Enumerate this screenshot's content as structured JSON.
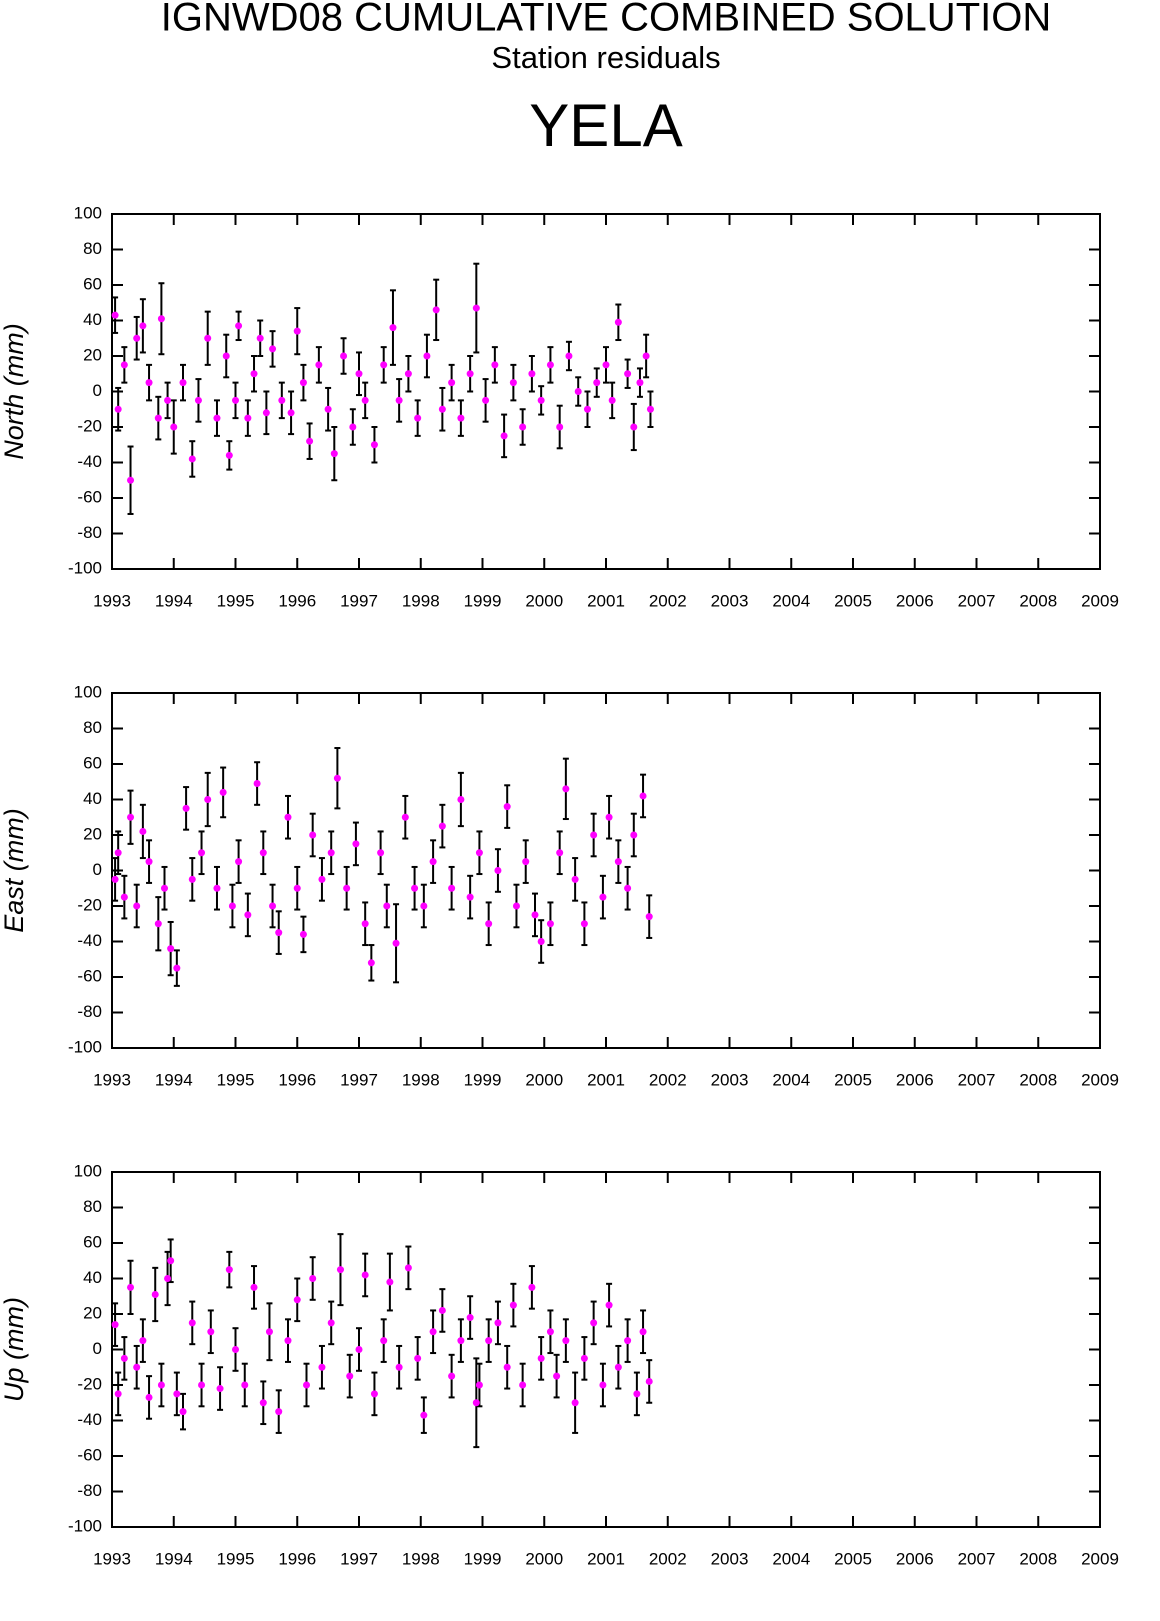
{
  "header": {
    "title": "IGNWD08 CUMULATIVE COMBINED SOLUTION",
    "subtitle": "Station residuals",
    "station": "YELA"
  },
  "chart_data": [
    {
      "type": "scatter",
      "ylabel": "North (mm)",
      "xlim": [
        1993,
        2009
      ],
      "xticks": [
        1993,
        1994,
        1995,
        1996,
        1997,
        1998,
        1999,
        2000,
        2001,
        2002,
        2003,
        2004,
        2005,
        2006,
        2007,
        2008,
        2009
      ],
      "ylim": [
        -100,
        100
      ],
      "yticks": [
        -100,
        -80,
        -60,
        -40,
        -20,
        0,
        20,
        40,
        60,
        80,
        100
      ],
      "x": [
        1993.05,
        1993.1,
        1993.2,
        1993.3,
        1993.4,
        1993.5,
        1993.6,
        1993.75,
        1993.8,
        1993.9,
        1994.0,
        1994.15,
        1994.3,
        1994.4,
        1994.55,
        1994.7,
        1994.85,
        1994.9,
        1995.0,
        1995.05,
        1995.2,
        1995.3,
        1995.4,
        1995.5,
        1995.6,
        1995.75,
        1995.9,
        1996.0,
        1996.1,
        1996.2,
        1996.35,
        1996.5,
        1996.6,
        1996.75,
        1996.9,
        1997.0,
        1997.1,
        1997.25,
        1997.4,
        1997.55,
        1997.65,
        1997.8,
        1997.95,
        1998.1,
        1998.25,
        1998.35,
        1998.5,
        1998.65,
        1998.8,
        1998.9,
        1999.05,
        1999.2,
        1999.35,
        1999.5,
        1999.65,
        1999.8,
        1999.95,
        2000.1,
        2000.25,
        2000.4,
        2000.55,
        2000.7,
        2000.85,
        2001.0,
        2001.1,
        2001.2,
        2001.35,
        2001.45,
        2001.55,
        2001.65,
        2001.72
      ],
      "series": [
        {
          "name": "North",
          "color": "#ff00ff",
          "errorcolor": "#000000",
          "values": [
            43,
            -10,
            15,
            -50,
            30,
            37,
            5,
            -15,
            41,
            -5,
            -20,
            5,
            -38,
            -5,
            30,
            -15,
            20,
            -36,
            -5,
            37,
            -15,
            10,
            30,
            -12,
            24,
            -5,
            -12,
            34,
            5,
            -28,
            15,
            -10,
            -35,
            20,
            -20,
            10,
            -5,
            -30,
            15,
            36,
            -5,
            10,
            -15,
            20,
            46,
            -10,
            5,
            -15,
            10,
            47,
            -5,
            15,
            -25,
            5,
            -20,
            10,
            -5,
            15,
            -20,
            20,
            0,
            -10,
            5,
            15,
            -5,
            39,
            10,
            -20,
            5,
            20,
            -10
          ],
          "errors": [
            10,
            12,
            10,
            19,
            12,
            15,
            10,
            12,
            20,
            10,
            15,
            10,
            10,
            12,
            15,
            10,
            12,
            8,
            10,
            8,
            10,
            10,
            10,
            12,
            10,
            10,
            12,
            13,
            10,
            10,
            10,
            12,
            15,
            10,
            10,
            12,
            10,
            10,
            10,
            21,
            12,
            10,
            10,
            12,
            17,
            12,
            10,
            10,
            10,
            25,
            12,
            10,
            12,
            10,
            10,
            10,
            8,
            10,
            12,
            8,
            8,
            10,
            8,
            10,
            10,
            10,
            8,
            13,
            8,
            12,
            10
          ]
        }
      ]
    },
    {
      "type": "scatter",
      "ylabel": "East (mm)",
      "xlim": [
        1993,
        2009
      ],
      "xticks": [
        1993,
        1994,
        1995,
        1996,
        1997,
        1998,
        1999,
        2000,
        2001,
        2002,
        2003,
        2004,
        2005,
        2006,
        2007,
        2008,
        2009
      ],
      "ylim": [
        -100,
        100
      ],
      "yticks": [
        -100,
        -80,
        -60,
        -40,
        -20,
        0,
        20,
        40,
        60,
        80,
        100
      ],
      "x": [
        1993.05,
        1993.1,
        1993.2,
        1993.3,
        1993.4,
        1993.5,
        1993.6,
        1993.75,
        1993.85,
        1993.95,
        1994.05,
        1994.2,
        1994.3,
        1994.45,
        1994.55,
        1994.7,
        1994.8,
        1994.95,
        1995.05,
        1995.2,
        1995.35,
        1995.45,
        1995.6,
        1995.7,
        1995.85,
        1996.0,
        1996.1,
        1996.25,
        1996.4,
        1996.55,
        1996.65,
        1996.8,
        1996.95,
        1997.1,
        1997.2,
        1997.35,
        1997.45,
        1997.6,
        1997.75,
        1997.9,
        1998.05,
        1998.2,
        1998.35,
        1998.5,
        1998.65,
        1998.8,
        1998.95,
        1999.1,
        1999.25,
        1999.4,
        1999.55,
        1999.7,
        1999.85,
        1999.95,
        2000.1,
        2000.25,
        2000.35,
        2000.5,
        2000.65,
        2000.8,
        2000.95,
        2001.05,
        2001.2,
        2001.35,
        2001.45,
        2001.6,
        2001.7
      ],
      "series": [
        {
          "name": "East",
          "color": "#ff00ff",
          "errorcolor": "#000000",
          "values": [
            -5,
            10,
            -15,
            30,
            -20,
            22,
            5,
            -30,
            -10,
            -44,
            -55,
            35,
            -5,
            10,
            40,
            -10,
            44,
            -20,
            5,
            -25,
            49,
            10,
            -20,
            -35,
            30,
            -10,
            -36,
            20,
            -5,
            10,
            52,
            -10,
            15,
            -30,
            -52,
            10,
            -20,
            -41,
            30,
            -10,
            -20,
            5,
            25,
            -10,
            40,
            -15,
            10,
            -30,
            0,
            36,
            -20,
            5,
            -25,
            -40,
            -30,
            10,
            46,
            -5,
            -30,
            20,
            -15,
            30,
            5,
            -10,
            20,
            42,
            -26
          ],
          "errors": [
            12,
            12,
            12,
            15,
            12,
            15,
            12,
            15,
            12,
            15,
            10,
            12,
            12,
            12,
            15,
            12,
            14,
            12,
            12,
            12,
            12,
            12,
            12,
            12,
            12,
            12,
            10,
            12,
            12,
            12,
            17,
            12,
            12,
            12,
            10,
            12,
            12,
            22,
            12,
            12,
            12,
            12,
            12,
            12,
            15,
            12,
            12,
            12,
            12,
            12,
            12,
            12,
            12,
            12,
            12,
            12,
            17,
            12,
            12,
            12,
            12,
            12,
            12,
            12,
            12,
            12,
            12
          ]
        }
      ]
    },
    {
      "type": "scatter",
      "ylabel": "Up (mm)",
      "xlim": [
        1993,
        2009
      ],
      "xticks": [
        1993,
        1994,
        1995,
        1996,
        1997,
        1998,
        1999,
        2000,
        2001,
        2002,
        2003,
        2004,
        2005,
        2006,
        2007,
        2008,
        2009
      ],
      "ylim": [
        -100,
        100
      ],
      "yticks": [
        -100,
        -80,
        -60,
        -40,
        -20,
        0,
        20,
        40,
        60,
        80,
        100
      ],
      "x": [
        1993.05,
        1993.1,
        1993.2,
        1993.3,
        1993.4,
        1993.5,
        1993.6,
        1993.7,
        1993.8,
        1993.9,
        1993.95,
        1994.05,
        1994.15,
        1994.3,
        1994.45,
        1994.6,
        1994.75,
        1994.9,
        1995.0,
        1995.15,
        1995.3,
        1995.45,
        1995.55,
        1995.7,
        1995.85,
        1996.0,
        1996.15,
        1996.25,
        1996.4,
        1996.55,
        1996.7,
        1996.85,
        1997.0,
        1997.1,
        1997.25,
        1997.4,
        1997.5,
        1997.65,
        1997.8,
        1997.95,
        1998.05,
        1998.2,
        1998.35,
        1998.5,
        1998.65,
        1998.8,
        1998.9,
        1998.95,
        1999.1,
        1999.25,
        1999.4,
        1999.5,
        1999.65,
        1999.8,
        1999.95,
        2000.1,
        2000.2,
        2000.35,
        2000.5,
        2000.65,
        2000.8,
        2000.95,
        2001.05,
        2001.2,
        2001.35,
        2001.5,
        2001.6,
        2001.7
      ],
      "series": [
        {
          "name": "Up",
          "color": "#ff00ff",
          "errorcolor": "#000000",
          "values": [
            14,
            -25,
            -5,
            35,
            -10,
            5,
            -27,
            31,
            -20,
            40,
            50,
            -25,
            -35,
            15,
            -20,
            10,
            -22,
            45,
            0,
            -20,
            35,
            -30,
            10,
            -35,
            5,
            28,
            -20,
            40,
            -10,
            15,
            45,
            -15,
            0,
            42,
            -25,
            5,
            38,
            -10,
            46,
            -5,
            -37,
            10,
            22,
            -15,
            5,
            18,
            -30,
            -20,
            5,
            15,
            -10,
            25,
            -20,
            35,
            -5,
            10,
            -15,
            5,
            -30,
            -5,
            15,
            -20,
            25,
            -10,
            5,
            -25,
            10,
            -18
          ],
          "errors": [
            12,
            12,
            12,
            15,
            12,
            12,
            12,
            15,
            12,
            15,
            12,
            12,
            10,
            12,
            12,
            12,
            12,
            10,
            12,
            12,
            12,
            12,
            16,
            12,
            12,
            12,
            12,
            12,
            12,
            12,
            20,
            12,
            12,
            12,
            12,
            12,
            16,
            12,
            12,
            12,
            10,
            12,
            12,
            12,
            12,
            12,
            25,
            12,
            12,
            12,
            12,
            12,
            12,
            12,
            12,
            12,
            12,
            12,
            17,
            12,
            12,
            12,
            12,
            12,
            12,
            12,
            12,
            12
          ]
        }
      ]
    }
  ]
}
